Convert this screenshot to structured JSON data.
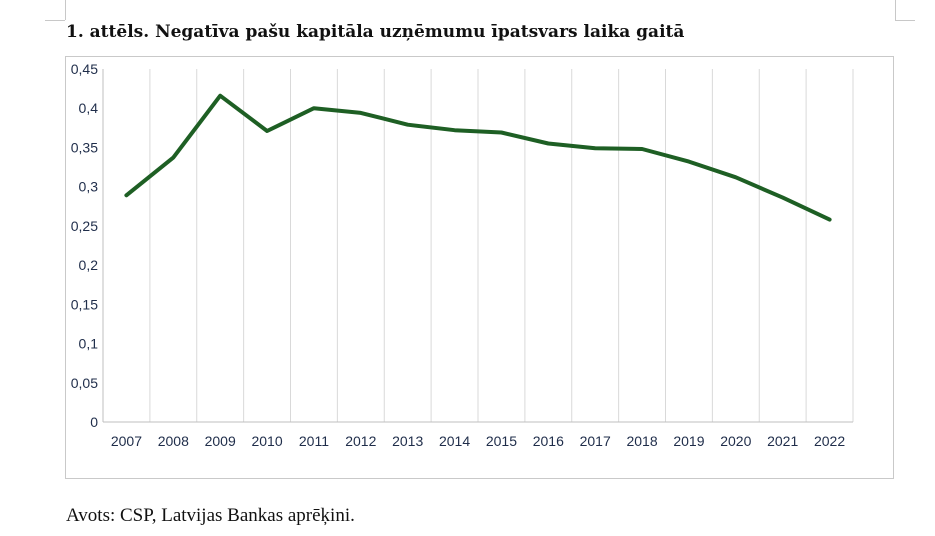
{
  "figure": {
    "title": "1. attēls.  Negatīva pašu kapitāla uzņēmumu īpatsvars laika gaitā",
    "source": "Avots: CSP, Latvijas Bankas aprēķini."
  },
  "chart_data": {
    "type": "line",
    "title": "1. attēls.  Negatīva pašu kapitāla uzņēmumu īpatsvars laika gaitā",
    "xlabel": "",
    "ylabel": "",
    "categories": [
      "2007",
      "2008",
      "2009",
      "2010",
      "2011",
      "2012",
      "2013",
      "2014",
      "2015",
      "2016",
      "2017",
      "2018",
      "2019",
      "2020",
      "2021",
      "2022"
    ],
    "series": [
      {
        "values": [
          0.289,
          0.337,
          0.416,
          0.371,
          0.4,
          0.394,
          0.379,
          0.372,
          0.369,
          0.355,
          0.349,
          0.348,
          0.332,
          0.312,
          0.286,
          0.258
        ],
        "color": "#1e5f24"
      }
    ],
    "ylim": [
      0,
      0.45
    ],
    "yticks": [
      "0",
      "0,05",
      "0,1",
      "0,15",
      "0,2",
      "0,25",
      "0,3",
      "0,35",
      "0,4",
      "0,45"
    ],
    "grid": "vertical",
    "legend": "none"
  }
}
